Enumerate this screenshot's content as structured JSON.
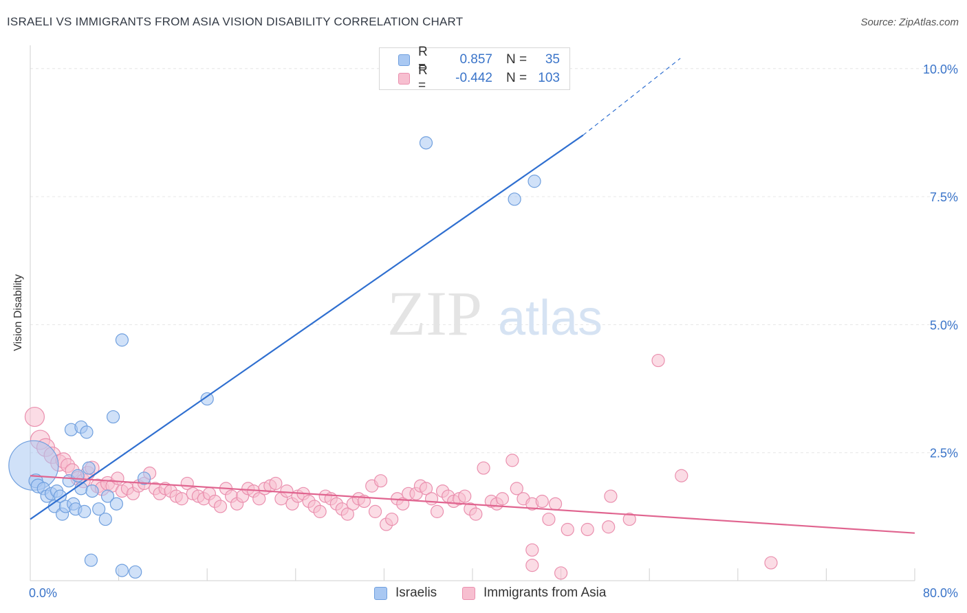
{
  "title": "ISRAELI VS IMMIGRANTS FROM ASIA VISION DISABILITY CORRELATION CHART",
  "source": "Source: ZipAtlas.com",
  "watermark": {
    "zip": "ZIP",
    "atlas": "atlas"
  },
  "legend": {
    "rows": [
      {
        "r_label": "R =",
        "r_value": "0.857",
        "n_label": "N =",
        "n_value": "35",
        "color": "#a9c8f2",
        "border": "#6f9fde"
      },
      {
        "r_label": "R =",
        "r_value": "-0.442",
        "n_label": "N =",
        "n_value": "103",
        "color": "#f7bfd0",
        "border": "#ea8fae"
      }
    ]
  },
  "bottom_legend": [
    {
      "label": "Israelis",
      "color": "#a9c8f2",
      "border": "#6f9fde"
    },
    {
      "label": "Immigrants from Asia",
      "color": "#f7bfd0",
      "border": "#ea8fae"
    }
  ],
  "chart_data": {
    "type": "scatter",
    "title": "ISRAELI VS IMMIGRANTS FROM ASIA VISION DISABILITY CORRELATION CHART",
    "ylabel": "Vision Disability",
    "xlabel": "",
    "xlim": [
      0,
      80
    ],
    "ylim": [
      0,
      10.4
    ],
    "x_tick_labels": [
      "0.0%",
      "80.0%"
    ],
    "y_ticks": [
      2.5,
      5.0,
      7.5,
      10.0
    ],
    "y_tick_labels": [
      "2.5%",
      "5.0%",
      "7.5%",
      "10.0%"
    ],
    "grid": true,
    "series": [
      {
        "name": "Israelis",
        "color": "#a9c8f2",
        "stroke": "#6f9fde",
        "line_color": "#2f6fd0",
        "trend": {
          "x1": 0,
          "y1": 1.2,
          "x2": 50,
          "y2": 8.7,
          "dash_to_x": 58.8,
          "dash_to_y": 10.2
        },
        "points": [
          [
            0.3,
            2.25,
            36
          ],
          [
            0.5,
            1.95,
            10
          ],
          [
            0.7,
            1.85,
            10
          ],
          [
            1.2,
            1.8,
            9
          ],
          [
            1.5,
            1.65,
            9
          ],
          [
            1.9,
            1.7,
            9
          ],
          [
            2.2,
            1.45,
            9
          ],
          [
            2.4,
            1.75,
            9
          ],
          [
            2.7,
            1.65,
            9
          ],
          [
            2.9,
            1.3,
            9
          ],
          [
            3.2,
            1.45,
            9
          ],
          [
            3.5,
            1.95,
            9
          ],
          [
            3.7,
            2.95,
            9
          ],
          [
            3.9,
            1.5,
            9
          ],
          [
            4.1,
            1.4,
            9
          ],
          [
            4.3,
            2.05,
            9
          ],
          [
            4.6,
            1.8,
            9
          ],
          [
            4.9,
            1.35,
            9
          ],
          [
            5.3,
            2.2,
            9
          ],
          [
            5.6,
            1.75,
            9
          ],
          [
            4.6,
            3.0,
            9
          ],
          [
            5.1,
            2.9,
            9
          ],
          [
            6.2,
            1.4,
            9
          ],
          [
            6.8,
            1.2,
            9
          ],
          [
            7.0,
            1.65,
            9
          ],
          [
            7.5,
            3.2,
            9
          ],
          [
            7.8,
            1.5,
            9
          ],
          [
            8.3,
            4.7,
            9
          ],
          [
            10.3,
            2.0,
            9
          ],
          [
            16.0,
            3.55,
            9
          ],
          [
            5.5,
            0.4,
            9
          ],
          [
            8.3,
            0.2,
            9
          ],
          [
            9.5,
            0.17,
            9
          ],
          [
            35.8,
            8.55,
            9
          ],
          [
            43.8,
            7.45,
            9
          ],
          [
            45.6,
            7.8,
            9
          ]
        ]
      },
      {
        "name": "Immigrants from Asia",
        "color": "#f7bfd0",
        "stroke": "#ea8fae",
        "line_color": "#e0648f",
        "trend": {
          "x1": 0,
          "y1": 2.05,
          "x2": 80,
          "y2": 0.93
        },
        "points": [
          [
            0.4,
            3.2,
            14
          ],
          [
            0.9,
            2.75,
            14
          ],
          [
            1.4,
            2.6,
            13
          ],
          [
            2.0,
            2.45,
            12
          ],
          [
            2.6,
            2.3,
            12
          ],
          [
            3.0,
            2.35,
            11
          ],
          [
            3.4,
            2.25,
            10
          ],
          [
            3.8,
            2.15,
            10
          ],
          [
            4.3,
            2.0,
            10
          ],
          [
            4.8,
            1.95,
            10
          ],
          [
            5.2,
            2.1,
            10
          ],
          [
            5.6,
            2.2,
            10
          ],
          [
            6.1,
            1.85,
            10
          ],
          [
            6.5,
            1.8,
            10
          ],
          [
            7.0,
            1.9,
            10
          ],
          [
            7.4,
            1.85,
            9
          ],
          [
            7.9,
            2.0,
            9
          ],
          [
            8.3,
            1.75,
            9
          ],
          [
            8.8,
            1.8,
            9
          ],
          [
            9.3,
            1.7,
            9
          ],
          [
            9.8,
            1.85,
            9
          ],
          [
            10.3,
            1.9,
            9
          ],
          [
            10.8,
            2.1,
            9
          ],
          [
            11.3,
            1.8,
            9
          ],
          [
            11.7,
            1.7,
            9
          ],
          [
            12.2,
            1.8,
            9
          ],
          [
            12.7,
            1.75,
            9
          ],
          [
            13.2,
            1.65,
            9
          ],
          [
            13.7,
            1.6,
            9
          ],
          [
            14.2,
            1.9,
            9
          ],
          [
            14.7,
            1.7,
            9
          ],
          [
            15.2,
            1.65,
            9
          ],
          [
            15.7,
            1.6,
            9
          ],
          [
            16.2,
            1.7,
            9
          ],
          [
            16.7,
            1.55,
            9
          ],
          [
            17.2,
            1.45,
            9
          ],
          [
            17.7,
            1.8,
            9
          ],
          [
            18.2,
            1.65,
            9
          ],
          [
            18.7,
            1.5,
            9
          ],
          [
            19.2,
            1.65,
            9
          ],
          [
            19.7,
            1.8,
            9
          ],
          [
            20.2,
            1.75,
            9
          ],
          [
            20.7,
            1.6,
            9
          ],
          [
            21.2,
            1.8,
            9
          ],
          [
            21.7,
            1.85,
            9
          ],
          [
            22.2,
            1.9,
            9
          ],
          [
            22.7,
            1.6,
            9
          ],
          [
            23.2,
            1.75,
            9
          ],
          [
            23.7,
            1.5,
            9
          ],
          [
            24.2,
            1.65,
            9
          ],
          [
            24.7,
            1.7,
            9
          ],
          [
            25.2,
            1.55,
            9
          ],
          [
            25.7,
            1.45,
            9
          ],
          [
            26.2,
            1.35,
            9
          ],
          [
            26.7,
            1.65,
            9
          ],
          [
            27.2,
            1.6,
            9
          ],
          [
            27.7,
            1.5,
            9
          ],
          [
            28.2,
            1.4,
            9
          ],
          [
            28.7,
            1.3,
            9
          ],
          [
            29.2,
            1.5,
            9
          ],
          [
            29.7,
            1.6,
            9
          ],
          [
            30.2,
            1.55,
            9
          ],
          [
            30.9,
            1.85,
            9
          ],
          [
            31.2,
            1.35,
            9
          ],
          [
            31.7,
            1.95,
            9
          ],
          [
            32.2,
            1.1,
            9
          ],
          [
            32.7,
            1.2,
            9
          ],
          [
            33.2,
            1.6,
            9
          ],
          [
            33.7,
            1.5,
            9
          ],
          [
            34.2,
            1.7,
            9
          ],
          [
            34.9,
            1.7,
            9
          ],
          [
            35.3,
            1.85,
            9
          ],
          [
            35.8,
            1.8,
            9
          ],
          [
            36.3,
            1.6,
            9
          ],
          [
            36.8,
            1.35,
            9
          ],
          [
            37.3,
            1.75,
            9
          ],
          [
            37.8,
            1.65,
            9
          ],
          [
            38.3,
            1.55,
            9
          ],
          [
            38.8,
            1.6,
            9
          ],
          [
            39.3,
            1.65,
            9
          ],
          [
            39.8,
            1.4,
            9
          ],
          [
            40.3,
            1.3,
            9
          ],
          [
            41.0,
            2.2,
            9
          ],
          [
            41.7,
            1.55,
            9
          ],
          [
            42.2,
            1.5,
            9
          ],
          [
            42.7,
            1.6,
            9
          ],
          [
            43.6,
            2.35,
            9
          ],
          [
            44.0,
            1.8,
            9
          ],
          [
            44.6,
            1.6,
            9
          ],
          [
            45.4,
            1.5,
            9
          ],
          [
            46.3,
            1.55,
            9
          ],
          [
            46.9,
            1.2,
            9
          ],
          [
            47.5,
            1.5,
            9
          ],
          [
            48.6,
            1.0,
            9
          ],
          [
            50.4,
            1.0,
            9
          ],
          [
            52.5,
            1.65,
            9
          ],
          [
            52.3,
            1.05,
            9
          ],
          [
            54.2,
            1.2,
            9
          ],
          [
            56.8,
            4.3,
            9
          ],
          [
            58.9,
            2.05,
            9
          ],
          [
            45.4,
            0.6,
            9
          ],
          [
            45.4,
            0.3,
            9
          ],
          [
            48.0,
            0.15,
            9
          ],
          [
            67.0,
            0.35,
            9
          ]
        ]
      }
    ]
  }
}
